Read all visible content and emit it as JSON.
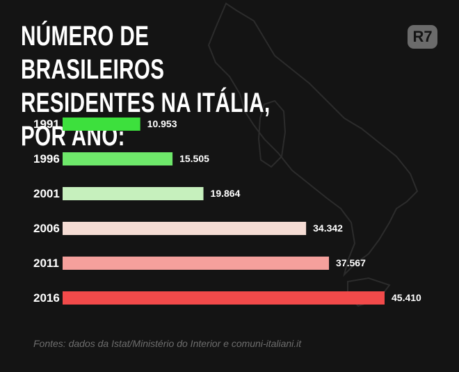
{
  "title": "Número de brasileiros\nresidentes na Itália, por ano:",
  "logo_text": "R7",
  "source": "Fontes: dados da Istat/Ministério do Interior e comuni-italiani.it",
  "colors": {
    "background": "#141414",
    "bars": [
      "#3de03d",
      "#6ee86a",
      "#c6f0bd",
      "#f5dcd4",
      "#f5a09c",
      "#f24a4a"
    ]
  },
  "chart_data": {
    "type": "bar",
    "orientation": "horizontal",
    "categories": [
      "1991",
      "1996",
      "2001",
      "2006",
      "2011",
      "2016"
    ],
    "values": [
      10953,
      15505,
      19864,
      34342,
      37567,
      45410
    ],
    "value_labels": [
      "10.953",
      "15.505",
      "19.864",
      "34.342",
      "37.567",
      "45.410"
    ],
    "grid": false,
    "legend": "none"
  }
}
